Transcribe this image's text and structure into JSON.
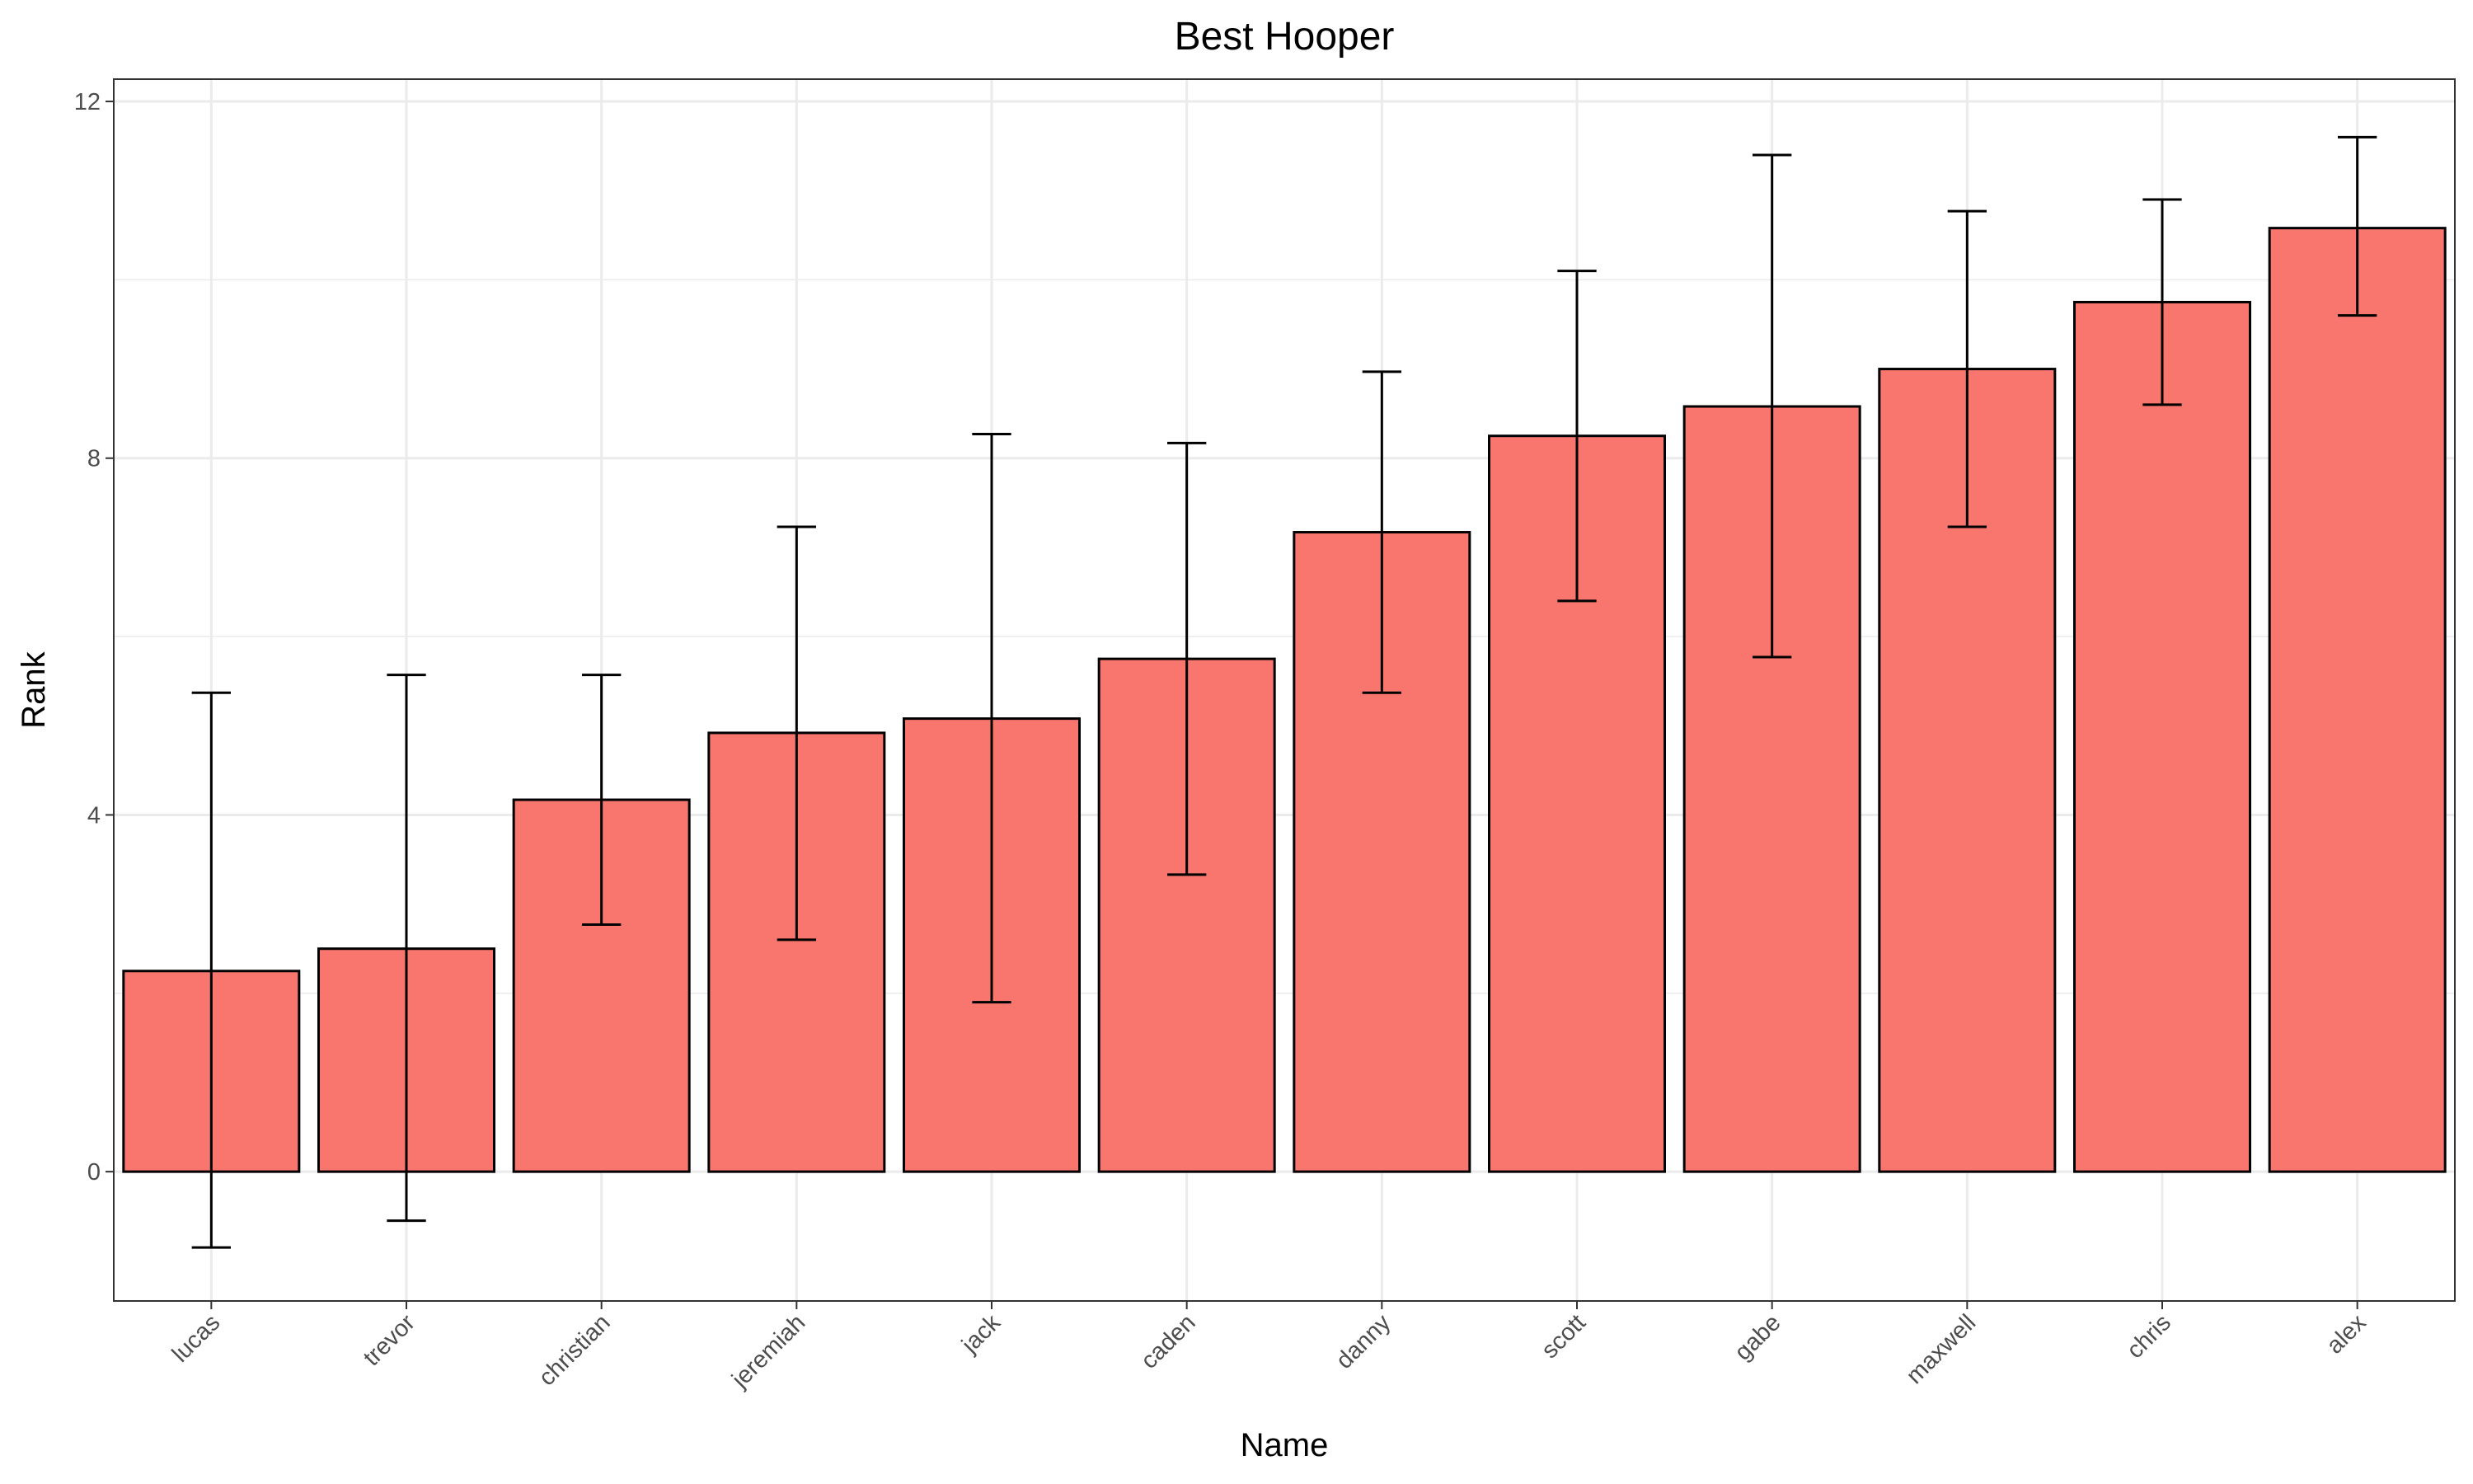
{
  "chart_data": {
    "type": "bar",
    "title": "Best Hooper",
    "xlabel": "Name",
    "ylabel": "Rank",
    "categories": [
      "lucas",
      "trevor",
      "christian",
      "jeremiah",
      "jack",
      "caden",
      "danny",
      "scott",
      "gabe",
      "maxwell",
      "chris",
      "alex"
    ],
    "values": [
      2.25,
      2.5,
      4.17,
      4.92,
      5.08,
      5.75,
      7.17,
      8.25,
      8.58,
      9.0,
      9.75,
      10.58
    ],
    "error_low": [
      -0.85,
      -0.55,
      2.77,
      2.6,
      1.9,
      3.33,
      5.37,
      6.4,
      5.77,
      7.23,
      8.6,
      9.6
    ],
    "error_high": [
      5.37,
      5.57,
      5.57,
      7.23,
      8.27,
      8.17,
      8.97,
      10.1,
      11.4,
      10.77,
      10.9,
      11.6
    ],
    "y_ticks": [
      0,
      4,
      8,
      12
    ],
    "ylim": [
      -1.45,
      12.25
    ],
    "grid": true,
    "legend": "none",
    "bar_fill": "#F8766D",
    "bar_stroke": "#000000"
  }
}
